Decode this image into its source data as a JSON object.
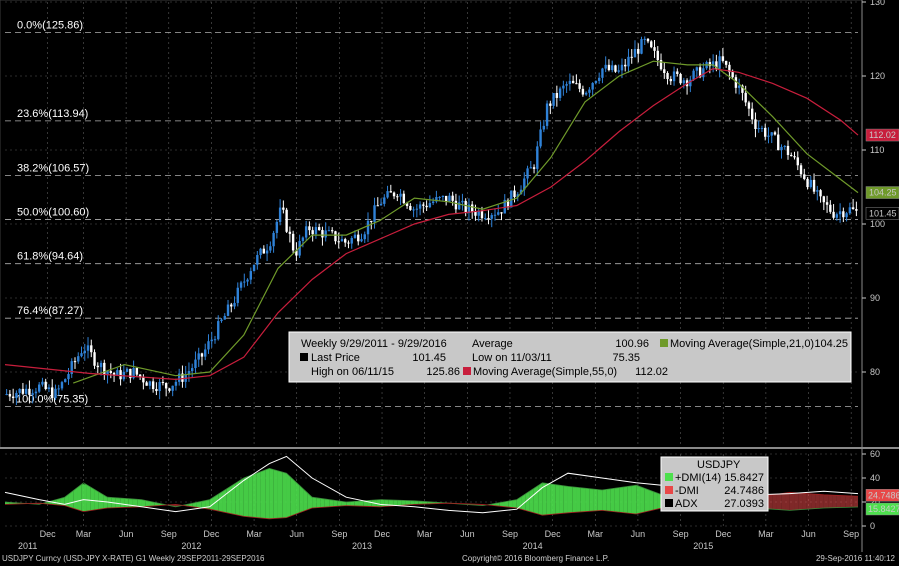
{
  "colors": {
    "bg": "#000000",
    "grid": "#5a5a5a",
    "candle_up": "#2f82d8",
    "candle_down": "#ffffff",
    "ma21": "#6f9a2a",
    "ma55": "#c81e3c",
    "dmi_plus": "#4de04d",
    "dmi_minus": "#e84848",
    "adx": "#000000",
    "legend_bg": "#c8c8c8"
  },
  "footer": {
    "left": "USDJPY Curncy (USD-JPY X-RATE) G1  Weekly 29SEP2011-29SEP2016",
    "center": "Copyright© 2016 Bloomberg Finance L.P.",
    "right": "29-Sep-2016 11:40:12"
  },
  "chart_data": [
    {
      "type": "line",
      "panel": "price",
      "ylim": [
        70,
        130
      ],
      "y_ticks": [
        80,
        90,
        100,
        110,
        120,
        130
      ],
      "x_tick_labels": [
        {
          "t": 0.25,
          "label": "Dec",
          "year": "2011"
        },
        {
          "t": 0.46,
          "label": "Mar"
        },
        {
          "t": 0.71,
          "label": "Jun"
        },
        {
          "t": 0.96,
          "label": "Sep"
        },
        {
          "t": 1.21,
          "label": "Dec",
          "year": "2012"
        },
        {
          "t": 1.46,
          "label": "Mar"
        },
        {
          "t": 1.71,
          "label": "Jun"
        },
        {
          "t": 1.96,
          "label": "Sep"
        },
        {
          "t": 2.21,
          "label": "Dec",
          "year": "2013"
        },
        {
          "t": 2.46,
          "label": "Mar"
        },
        {
          "t": 2.71,
          "label": "Jun"
        },
        {
          "t": 2.96,
          "label": "Sep"
        },
        {
          "t": 3.21,
          "label": "Dec",
          "year": "2014"
        },
        {
          "t": 3.46,
          "label": "Mar"
        },
        {
          "t": 3.71,
          "label": "Jun"
        },
        {
          "t": 3.96,
          "label": "Sep"
        },
        {
          "t": 4.21,
          "label": "Dec",
          "year": "2015"
        },
        {
          "t": 4.46,
          "label": "Mar"
        },
        {
          "t": 4.71,
          "label": "Jun"
        },
        {
          "t": 4.96,
          "label": "Sep"
        }
      ],
      "fib_levels": [
        {
          "label": "0.0%(125.86)",
          "value": 125.86
        },
        {
          "label": "23.6%(113.94)",
          "value": 113.94
        },
        {
          "label": "38.2%(106.57)",
          "value": 106.57
        },
        {
          "label": "50.0%(100.60)",
          "value": 100.6
        },
        {
          "label": "61.8%(94.64)",
          "value": 94.64
        },
        {
          "label": "76.4%(87.27)",
          "value": 87.27
        },
        {
          "label": "100.0%(75.35)",
          "value": 75.35
        }
      ],
      "price_path": [
        [
          0.0,
          77.0
        ],
        [
          0.1,
          77.5
        ],
        [
          0.2,
          78.0
        ],
        [
          0.3,
          77.0
        ],
        [
          0.4,
          81.0
        ],
        [
          0.46,
          83.5
        ],
        [
          0.55,
          81.0
        ],
        [
          0.65,
          79.5
        ],
        [
          0.75,
          80.0
        ],
        [
          0.85,
          78.5
        ],
        [
          0.95,
          78.0
        ],
        [
          1.05,
          79.5
        ],
        [
          1.15,
          82.0
        ],
        [
          1.25,
          86.0
        ],
        [
          1.35,
          90.0
        ],
        [
          1.45,
          94.5
        ],
        [
          1.55,
          97.5
        ],
        [
          1.62,
          102.0
        ],
        [
          1.7,
          96.0
        ],
        [
          1.78,
          99.5
        ],
        [
          1.9,
          98.5
        ],
        [
          2.0,
          97.5
        ],
        [
          2.1,
          99.0
        ],
        [
          2.2,
          103.0
        ],
        [
          2.3,
          104.5
        ],
        [
          2.4,
          102.0
        ],
        [
          2.5,
          103.0
        ],
        [
          2.6,
          103.5
        ],
        [
          2.7,
          102.0
        ],
        [
          2.8,
          101.5
        ],
        [
          2.9,
          101.8
        ],
        [
          3.0,
          104.5
        ],
        [
          3.1,
          108.0
        ],
        [
          3.18,
          116.0
        ],
        [
          3.3,
          119.0
        ],
        [
          3.4,
          118.0
        ],
        [
          3.5,
          121.0
        ],
        [
          3.6,
          120.5
        ],
        [
          3.7,
          123.5
        ],
        [
          3.75,
          124.5
        ],
        [
          3.8,
          123.0
        ],
        [
          3.9,
          120.0
        ],
        [
          4.0,
          119.5
        ],
        [
          4.1,
          121.0
        ],
        [
          4.2,
          122.0
        ],
        [
          4.3,
          118.5
        ],
        [
          4.4,
          113.5
        ],
        [
          4.5,
          111.5
        ],
        [
          4.6,
          109.5
        ],
        [
          4.7,
          106.0
        ],
        [
          4.78,
          103.0
        ],
        [
          4.86,
          101.5
        ],
        [
          4.95,
          102.0
        ],
        [
          5.0,
          101.45
        ]
      ],
      "series": [
        {
          "name": "Moving Average(Simple,21,0)",
          "points": [
            [
              0.4,
              78.5
            ],
            [
              0.7,
              81.0
            ],
            [
              1.0,
              79.5
            ],
            [
              1.2,
              80.0
            ],
            [
              1.4,
              85.0
            ],
            [
              1.6,
              94.0
            ],
            [
              1.8,
              98.5
            ],
            [
              2.0,
              98.5
            ],
            [
              2.2,
              100.5
            ],
            [
              2.4,
              103.5
            ],
            [
              2.6,
              103.0
            ],
            [
              2.8,
              102.0
            ],
            [
              3.0,
              103.5
            ],
            [
              3.2,
              109.0
            ],
            [
              3.4,
              116.5
            ],
            [
              3.6,
              120.0
            ],
            [
              3.8,
              122.0
            ],
            [
              4.0,
              121.5
            ],
            [
              4.15,
              121.5
            ],
            [
              4.3,
              119.0
            ],
            [
              4.5,
              114.5
            ],
            [
              4.7,
              109.5
            ],
            [
              4.9,
              106.0
            ],
            [
              5.0,
              104.25
            ]
          ]
        },
        {
          "name": "Moving Average(Simple,55,0)",
          "points": [
            [
              0.0,
              81.0
            ],
            [
              0.5,
              79.8
            ],
            [
              1.0,
              79.0
            ],
            [
              1.2,
              79.5
            ],
            [
              1.4,
              82.0
            ],
            [
              1.6,
              88.0
            ],
            [
              1.8,
              92.5
            ],
            [
              2.0,
              96.0
            ],
            [
              2.2,
              98.0
            ],
            [
              2.4,
              100.0
            ],
            [
              2.6,
              101.3
            ],
            [
              2.8,
              101.8
            ],
            [
              3.0,
              102.5
            ],
            [
              3.2,
              105.0
            ],
            [
              3.4,
              108.5
            ],
            [
              3.6,
              112.5
            ],
            [
              3.8,
              116.0
            ],
            [
              4.0,
              119.0
            ],
            [
              4.15,
              121.0
            ],
            [
              4.3,
              120.5
            ],
            [
              4.5,
              119.0
            ],
            [
              4.7,
              117.0
            ],
            [
              4.9,
              114.0
            ],
            [
              5.0,
              112.02
            ]
          ]
        }
      ],
      "right_markers": [
        {
          "value": 112.02,
          "label": "112.02",
          "color": "#c81e3c"
        },
        {
          "value": 104.25,
          "label": "104.25",
          "color": "#6f9a2a"
        },
        {
          "value": 101.45,
          "label": "101.45",
          "color": "#000000"
        }
      ],
      "legend": {
        "title": "Weekly 9/29/2011 - 9/29/2016",
        "last_price_label": "Last Price",
        "last_price": "101.45",
        "high_label": "High on 06/11/15",
        "high": "125.86",
        "average_label": "Average",
        "average": "100.96",
        "low_label": "Low on 11/03/11",
        "low": "75.35",
        "ma55_label": "Moving Average(Simple,55,0)",
        "ma55": "112.02",
        "ma21_label": "Moving Average(Simple,21,0)",
        "ma21": "104.25"
      }
    },
    {
      "type": "area",
      "panel": "dmi",
      "ylim": [
        0,
        60
      ],
      "y_ticks": [
        0,
        20,
        40,
        60
      ],
      "series": [
        {
          "name": "+DMI(14)",
          "value": "15.8427",
          "points": [
            [
              0.0,
              20
            ],
            [
              0.2,
              18
            ],
            [
              0.35,
              24
            ],
            [
              0.46,
              36
            ],
            [
              0.6,
              24
            ],
            [
              0.8,
              22
            ],
            [
              1.0,
              16
            ],
            [
              1.2,
              22
            ],
            [
              1.4,
              40
            ],
            [
              1.55,
              48
            ],
            [
              1.65,
              44
            ],
            [
              1.8,
              24
            ],
            [
              2.0,
              20
            ],
            [
              2.2,
              22
            ],
            [
              2.4,
              21
            ],
            [
              2.6,
              19
            ],
            [
              2.8,
              17
            ],
            [
              3.0,
              22
            ],
            [
              3.15,
              36
            ],
            [
              3.3,
              33
            ],
            [
              3.5,
              30
            ],
            [
              3.7,
              34
            ],
            [
              3.85,
              26
            ],
            [
              4.0,
              20
            ],
            [
              4.2,
              24
            ],
            [
              4.4,
              15
            ],
            [
              4.6,
              13
            ],
            [
              4.8,
              15
            ],
            [
              5.0,
              15.84
            ]
          ]
        },
        {
          "name": "-DMI",
          "value": "24.7486",
          "points": [
            [
              0.0,
              18
            ],
            [
              0.2,
              19
            ],
            [
              0.35,
              17
            ],
            [
              0.46,
              12
            ],
            [
              0.6,
              15
            ],
            [
              0.8,
              16
            ],
            [
              1.0,
              18
            ],
            [
              1.2,
              14
            ],
            [
              1.4,
              8
            ],
            [
              1.55,
              6
            ],
            [
              1.65,
              7
            ],
            [
              1.8,
              15
            ],
            [
              2.0,
              17
            ],
            [
              2.2,
              16
            ],
            [
              2.4,
              18
            ],
            [
              2.6,
              19
            ],
            [
              2.8,
              18
            ],
            [
              3.0,
              15
            ],
            [
              3.15,
              9
            ],
            [
              3.3,
              11
            ],
            [
              3.5,
              13
            ],
            [
              3.7,
              10
            ],
            [
              3.85,
              15
            ],
            [
              4.0,
              21
            ],
            [
              4.2,
              18
            ],
            [
              4.4,
              24
            ],
            [
              4.6,
              28
            ],
            [
              4.8,
              26
            ],
            [
              5.0,
              24.75
            ]
          ]
        },
        {
          "name": "ADX",
          "value": "27.0393",
          "points": [
            [
              0.0,
              28
            ],
            [
              0.2,
              22
            ],
            [
              0.35,
              18
            ],
            [
              0.46,
              22
            ],
            [
              0.6,
              20
            ],
            [
              0.8,
              16
            ],
            [
              1.0,
              12
            ],
            [
              1.2,
              16
            ],
            [
              1.4,
              38
            ],
            [
              1.55,
              52
            ],
            [
              1.65,
              58
            ],
            [
              1.8,
              40
            ],
            [
              2.0,
              24
            ],
            [
              2.2,
              18
            ],
            [
              2.4,
              16
            ],
            [
              2.6,
              13
            ],
            [
              2.8,
              11
            ],
            [
              3.0,
              14
            ],
            [
              3.15,
              32
            ],
            [
              3.3,
              44
            ],
            [
              3.5,
              40
            ],
            [
              3.7,
              36
            ],
            [
              3.85,
              34
            ],
            [
              4.0,
              30
            ],
            [
              4.2,
              28
            ],
            [
              4.4,
              26
            ],
            [
              4.6,
              27
            ],
            [
              4.8,
              29
            ],
            [
              5.0,
              27.04
            ]
          ]
        }
      ],
      "right_markers": [
        {
          "value": 24.75,
          "label": "24.7486",
          "color": "#e84848"
        },
        {
          "value": 15.84,
          "label": "15.8427",
          "color": "#4de04d"
        }
      ],
      "legend": {
        "title": "USDJPY"
      }
    }
  ]
}
